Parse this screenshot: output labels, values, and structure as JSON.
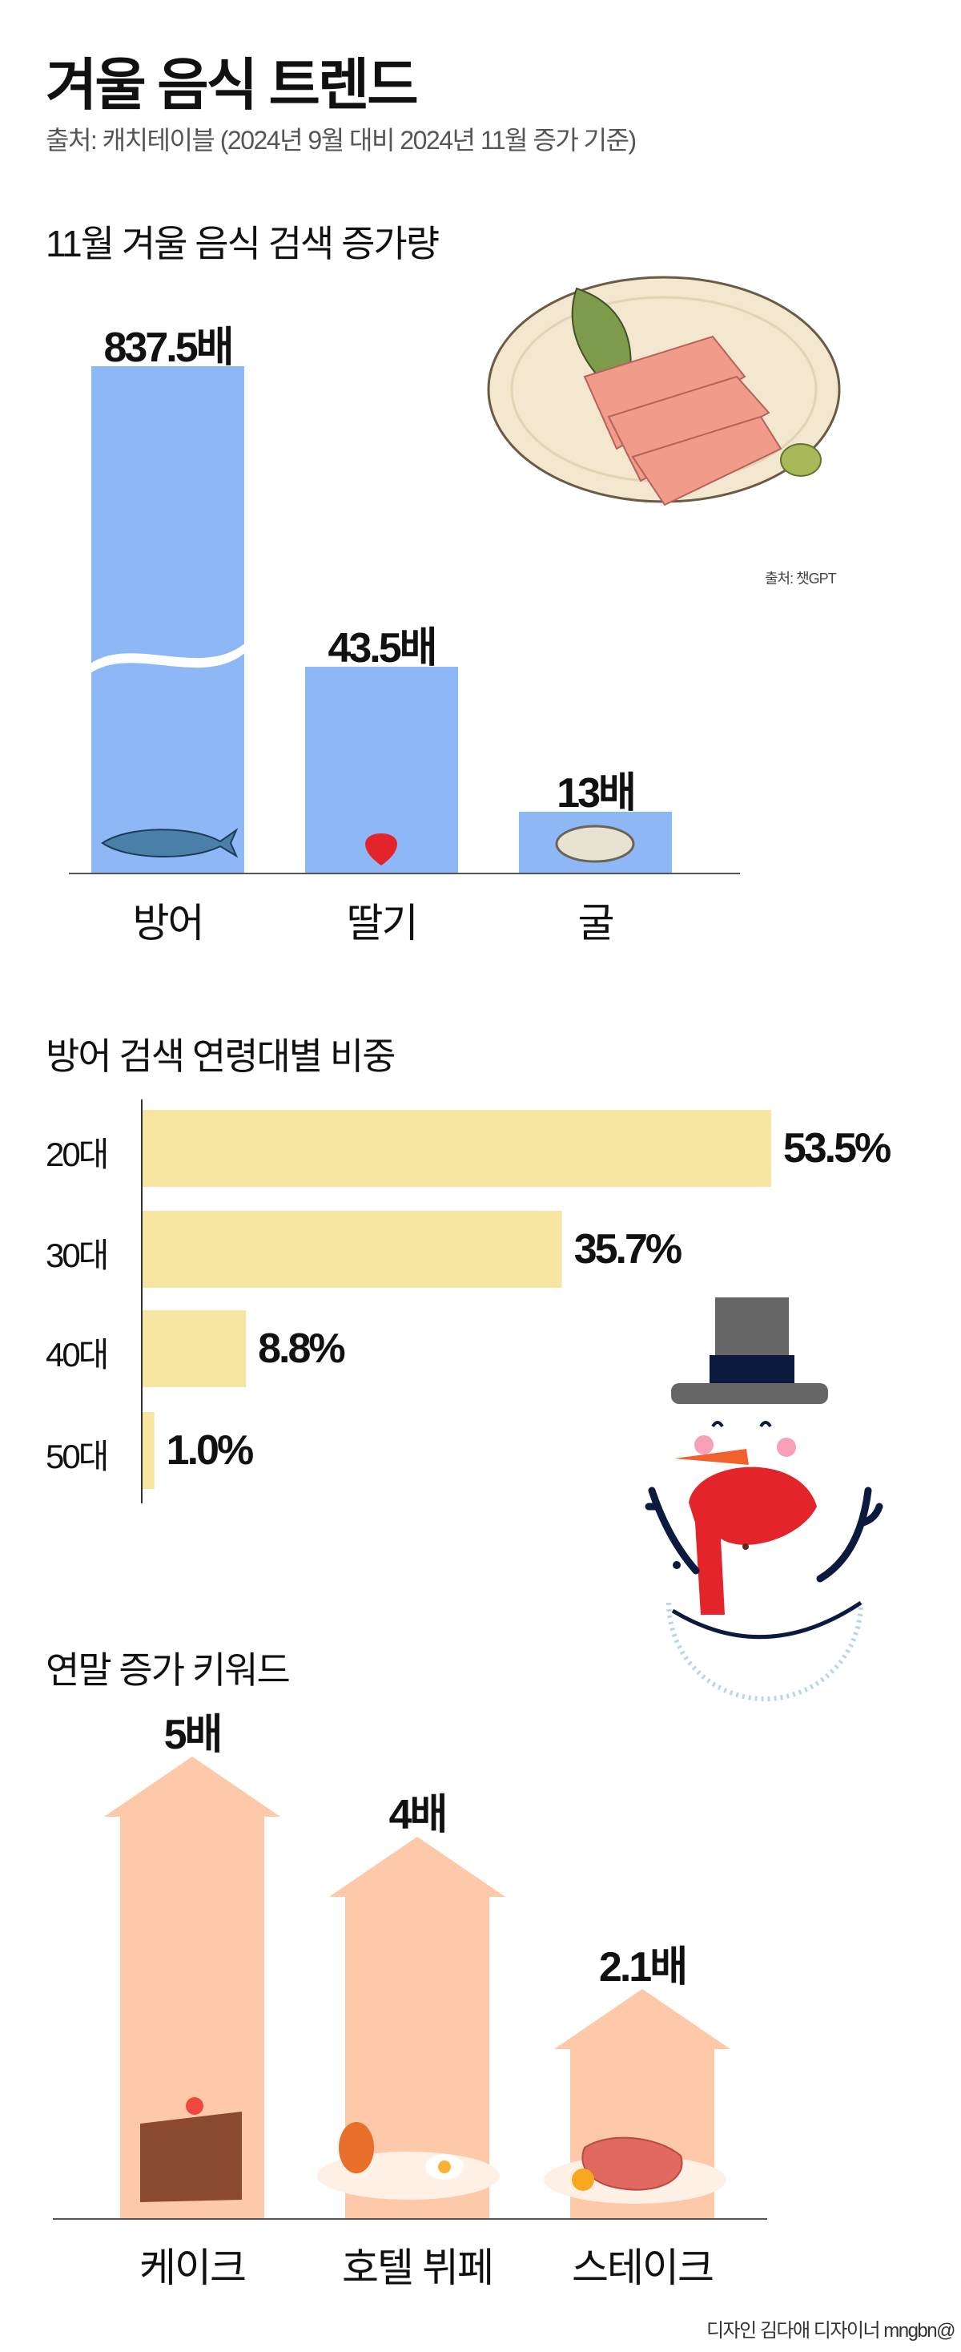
{
  "header": {
    "title": "겨울 음식 트렌드",
    "subtitle": "출처: 캐치테이블 (2024년 9월 대비 2024년 11월 증가 기준)"
  },
  "colors": {
    "blue_bar": "#8db8f5",
    "yellow_bar": "#f7e6a1",
    "arrow": "#fdc9a8"
  },
  "illustration_credit": "출처: 챗GPT",
  "footer": {
    "credit": "디자인 김다애 디자이너 mngbn@"
  },
  "chart_data": [
    {
      "type": "bar",
      "title": "11월 겨울 음식 검색 증가량",
      "categories": [
        "방어",
        "딸기",
        "굴"
      ],
      "values": [
        837.5,
        43.5,
        13
      ],
      "labels": [
        "837.5배",
        "43.5배",
        "13배"
      ],
      "icons": [
        "fish-icon",
        "strawberry-icon",
        "oyster-icon"
      ],
      "axis_break": true,
      "grid": false
    },
    {
      "type": "bar",
      "orientation": "horizontal",
      "title": "방어 검색 연령대별 비중",
      "categories": [
        "20대",
        "30대",
        "40대",
        "50대"
      ],
      "values": [
        53.5,
        35.7,
        8.8,
        1.0
      ],
      "labels": [
        "53.5%",
        "35.7%",
        "8.8%",
        "1.0%"
      ],
      "grid": false
    },
    {
      "type": "bar",
      "style": "arrows",
      "title": "연말 증가 키워드",
      "categories": [
        "케이크",
        "호텔 뷔페",
        "스테이크"
      ],
      "values": [
        5,
        4,
        2.1
      ],
      "labels": [
        "5배",
        "4배",
        "2.1배"
      ],
      "icons": [
        "cake-icon",
        "buffet-plate-icon",
        "steak-icon"
      ],
      "grid": false
    }
  ]
}
